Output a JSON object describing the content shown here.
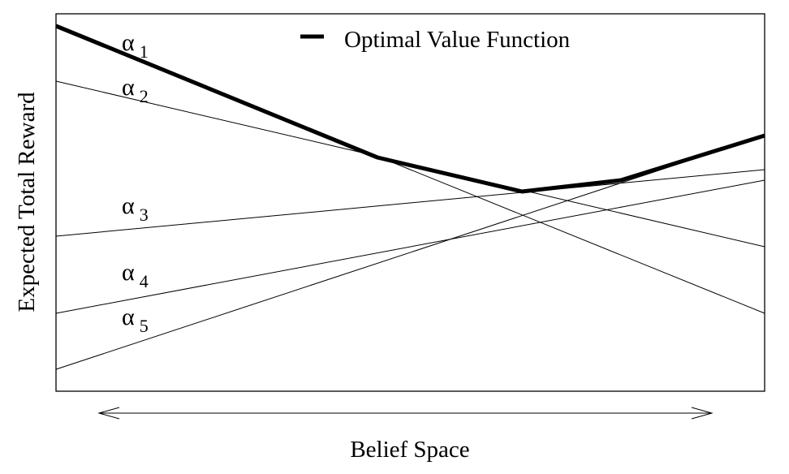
{
  "ylabel": "Expected Total Reward",
  "xlabel": "Belief Space",
  "legend": {
    "label": "Optimal Value Function",
    "color": "#000000"
  },
  "lines": [
    {
      "symbol": "α",
      "subscript": "1"
    },
    {
      "symbol": "α",
      "subscript": "2"
    },
    {
      "symbol": "α",
      "subscript": "3"
    },
    {
      "symbol": "α",
      "subscript": "4"
    },
    {
      "symbol": "α",
      "subscript": "5"
    }
  ]
}
